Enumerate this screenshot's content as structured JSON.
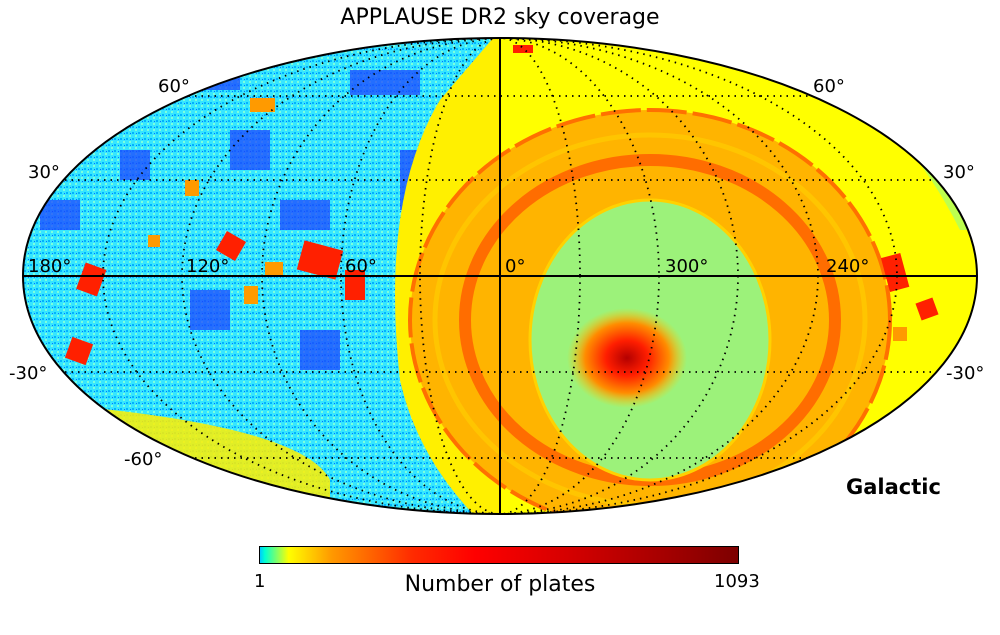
{
  "title": "APPLAUSE DR2 sky coverage",
  "frame_label": "Galactic",
  "colorbar": {
    "label": "Number of plates",
    "min": "1",
    "max": "1093"
  },
  "longitude_labels": [
    "180°",
    "120°",
    "60°",
    "0°",
    "300°",
    "240°"
  ],
  "latitude_labels": {
    "left": [
      "60°",
      "30°",
      "-30°",
      "-60°"
    ],
    "right": [
      "60°",
      "30°",
      "-30°"
    ]
  },
  "colors": {
    "low": "#00c8ff",
    "mid_low": "#ffff00",
    "mid": "#ff9900",
    "high": "#ff0000",
    "max": "#7d0000",
    "deep_low": "#0a1ef0"
  }
}
